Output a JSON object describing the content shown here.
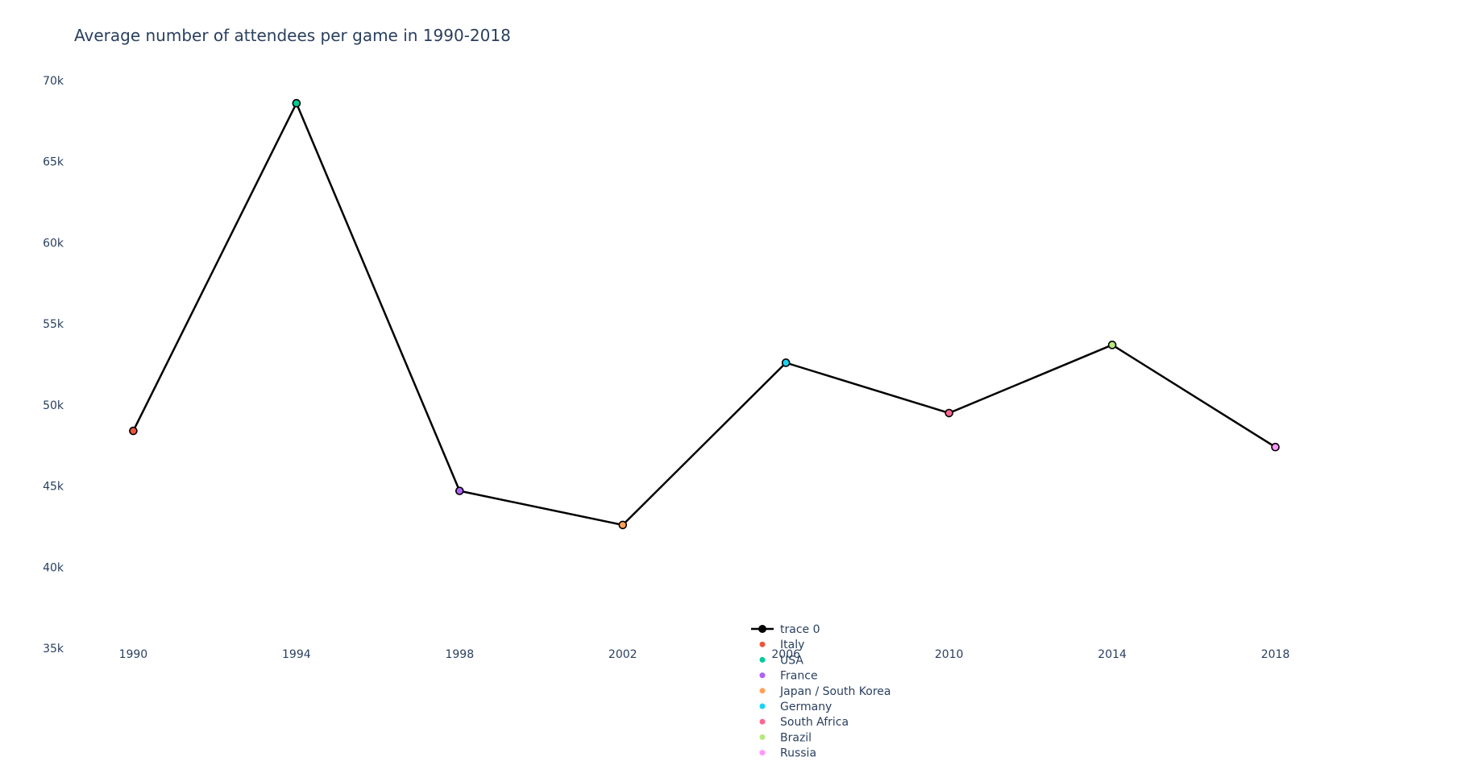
{
  "chart_data": {
    "type": "line",
    "title": "Average number of attendees per game in 1990-2018",
    "x": [
      1990,
      1994,
      1998,
      2002,
      2006,
      2010,
      2014,
      2018
    ],
    "xticks": [
      "1990",
      "1994",
      "1998",
      "2002",
      "2006",
      "2010",
      "2014",
      "2018"
    ],
    "yticks": [
      "35k",
      "40k",
      "45k",
      "50k",
      "55k",
      "60k",
      "65k",
      "70k"
    ],
    "ytick_values": [
      35000,
      40000,
      45000,
      50000,
      55000,
      60000,
      65000,
      70000
    ],
    "xlim": [
      1988.55,
      2021.15
    ],
    "ylim": [
      35000,
      70000
    ],
    "grid": false,
    "legend_position": "bottom-center",
    "line_color": "#000000",
    "series": [
      {
        "name": "trace 0",
        "values": [
          48400,
          68600,
          44700,
          42600,
          52600,
          49500,
          53700,
          47400
        ]
      }
    ],
    "points": [
      {
        "name": "Italy",
        "x": 1990,
        "y": 48400,
        "color": "#EF553B"
      },
      {
        "name": "USA",
        "x": 1994,
        "y": 68600,
        "color": "#00CC96"
      },
      {
        "name": "France",
        "x": 1998,
        "y": 44700,
        "color": "#AB63FA"
      },
      {
        "name": "Japan / South Korea",
        "x": 2002,
        "y": 42600,
        "color": "#FFA15A"
      },
      {
        "name": "Germany",
        "x": 2006,
        "y": 52600,
        "color": "#19D3F3"
      },
      {
        "name": "South Africa",
        "x": 2010,
        "y": 49500,
        "color": "#FF6692"
      },
      {
        "name": "Brazil",
        "x": 2014,
        "y": 53700,
        "color": "#B6E880"
      },
      {
        "name": "Russia",
        "x": 2018,
        "y": 47400,
        "color": "#FF97FF"
      }
    ]
  }
}
